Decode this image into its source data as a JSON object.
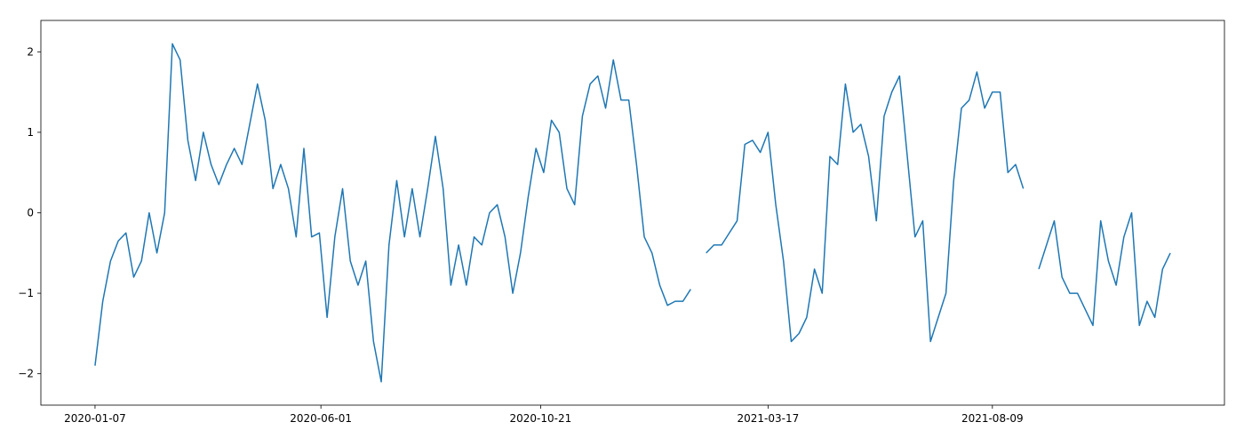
{
  "chart_data": {
    "type": "line",
    "color": "#1f77b4",
    "x": [
      "2020-01-07",
      "2020-01-12",
      "2020-01-17",
      "2020-01-22",
      "2020-01-27",
      "2020-02-01",
      "2020-02-06",
      "2020-02-11",
      "2020-02-16",
      "2020-02-21",
      "2020-02-26",
      "2020-03-02",
      "2020-03-07",
      "2020-03-12",
      "2020-03-17",
      "2020-03-22",
      "2020-03-27",
      "2020-04-01",
      "2020-04-06",
      "2020-04-11",
      "2020-04-16",
      "2020-04-21",
      "2020-04-26",
      "2020-05-01",
      "2020-05-06",
      "2020-05-11",
      "2020-05-16",
      "2020-05-21",
      "2020-05-26",
      "2020-05-31",
      "2020-06-05",
      "2020-06-10",
      "2020-06-15",
      "2020-06-20",
      "2020-06-25",
      "2020-06-30",
      "2020-07-05",
      "2020-07-10",
      "2020-07-15",
      "2020-07-20",
      "2020-07-25",
      "2020-07-30",
      "2020-08-04",
      "2020-08-09",
      "2020-08-14",
      "2020-08-19",
      "2020-08-24",
      "2020-08-29",
      "2020-09-03",
      "2020-09-08",
      "2020-09-13",
      "2020-09-18",
      "2020-09-23",
      "2020-09-28",
      "2020-10-03",
      "2020-10-08",
      "2020-10-13",
      "2020-10-18",
      "2020-10-23",
      "2020-10-28",
      "2020-11-02",
      "2020-11-07",
      "2020-11-12",
      "2020-11-17",
      "2020-11-22",
      "2020-11-27",
      "2020-12-02",
      "2020-12-07",
      "2020-12-12",
      "2020-12-17",
      "2020-12-22",
      "2020-12-27",
      "2021-01-01",
      "2021-01-06",
      "2021-01-11",
      "2021-01-16",
      "2021-01-21",
      "2021-01-26",
      "2021-01-31",
      "2021-02-05",
      "2021-02-10",
      "2021-02-15",
      "2021-02-20",
      "2021-02-25",
      "2021-03-02",
      "2021-03-07",
      "2021-03-12",
      "2021-03-17",
      "2021-03-22",
      "2021-03-27",
      "2021-04-01",
      "2021-04-06",
      "2021-04-11",
      "2021-04-16",
      "2021-04-21",
      "2021-04-26",
      "2021-05-01",
      "2021-05-06",
      "2021-05-11",
      "2021-05-16",
      "2021-05-21",
      "2021-05-26",
      "2021-05-31",
      "2021-06-05",
      "2021-06-10",
      "2021-06-15",
      "2021-06-20",
      "2021-06-25",
      "2021-06-30",
      "2021-07-05",
      "2021-07-10",
      "2021-07-15",
      "2021-07-20",
      "2021-07-25",
      "2021-07-30",
      "2021-08-04",
      "2021-08-09",
      "2021-08-14",
      "2021-08-19",
      "2021-08-24",
      "2021-08-29",
      "2021-09-03",
      "2021-09-08",
      "2021-09-13",
      "2021-09-18",
      "2021-09-23",
      "2021-09-28",
      "2021-10-03",
      "2021-10-08",
      "2021-10-13",
      "2021-10-18",
      "2021-10-23",
      "2021-10-28",
      "2021-11-02",
      "2021-11-07",
      "2021-11-12",
      "2021-11-17",
      "2021-11-22",
      "2021-11-27",
      "2021-12-02"
    ],
    "values": [
      -1.9,
      -1.1,
      -0.6,
      -0.35,
      -0.25,
      -0.8,
      -0.6,
      0.0,
      -0.5,
      0.0,
      2.1,
      1.9,
      0.9,
      0.4,
      1.0,
      0.6,
      0.35,
      0.6,
      0.8,
      0.6,
      1.1,
      1.6,
      1.15,
      0.3,
      0.6,
      0.3,
      -0.3,
      0.8,
      -0.3,
      -0.25,
      -1.3,
      -0.3,
      0.3,
      -0.6,
      -0.9,
      -0.6,
      -1.6,
      -2.1,
      -0.4,
      0.4,
      -0.3,
      0.3,
      -0.3,
      0.3,
      0.95,
      0.3,
      -0.9,
      -0.4,
      -0.9,
      -0.3,
      -0.4,
      0.0,
      0.1,
      -0.3,
      -1.0,
      -0.5,
      0.2,
      0.8,
      0.5,
      1.15,
      1.0,
      0.3,
      0.1,
      1.2,
      1.6,
      1.7,
      1.3,
      1.9,
      1.4,
      1.4,
      0.6,
      -0.3,
      -0.5,
      -0.9,
      -1.15,
      -1.1,
      -1.1,
      -0.95,
      null,
      -0.5,
      -0.4,
      -0.4,
      -0.25,
      -0.1,
      0.85,
      0.9,
      0.75,
      1.0,
      0.1,
      -0.6,
      -1.6,
      -1.5,
      -1.3,
      -0.7,
      -1.0,
      0.7,
      0.6,
      1.6,
      1.0,
      1.1,
      0.7,
      -0.1,
      1.2,
      1.5,
      1.7,
      0.7,
      -0.3,
      -0.1,
      -1.6,
      -1.3,
      -1.0,
      0.4,
      1.3,
      1.4,
      1.75,
      1.3,
      1.5,
      1.5,
      0.5,
      0.6,
      0.3,
      null,
      -0.7,
      -0.4,
      -0.1,
      -0.8,
      -1.0,
      -1.0,
      -1.2,
      -1.4,
      -0.1,
      -0.6,
      -0.9,
      -0.3,
      0.0,
      -1.4,
      -1.1,
      -1.3,
      -0.7,
      -0.5
    ],
    "xlim": [
      "2019-12-03",
      "2022-01-06"
    ],
    "xticks": [
      "2020-01-07",
      "2020-06-01",
      "2020-10-21",
      "2021-03-17",
      "2021-08-09"
    ],
    "ylim": [
      -2.39,
      2.39
    ],
    "yticks": [
      {
        "value": -2,
        "label": "−2"
      },
      {
        "value": -1,
        "label": "−1"
      },
      0,
      1,
      2
    ]
  }
}
